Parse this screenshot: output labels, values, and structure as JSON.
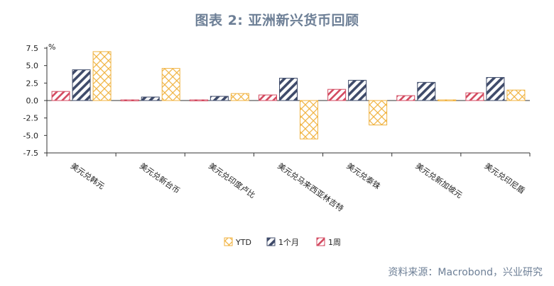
{
  "title": "图表 2: 亚洲新兴货币回顾",
  "source": "资料来源：Macrobond，兴业研究",
  "chart_data": {
    "type": "bar",
    "unit": "%",
    "categories": [
      "美元兑韩元",
      "美元兑新台币",
      "美元兑印度卢比",
      "美元兑马来西亚林吉特",
      "美元兑泰铢",
      "美元兑新加坡元",
      "美元兑印尼盾"
    ],
    "series": [
      {
        "name": "1周",
        "color": "#d34a60",
        "pattern": "diag-thin",
        "values": [
          1.3,
          0.1,
          0.1,
          0.8,
          1.6,
          0.7,
          1.1
        ]
      },
      {
        "name": "1个月",
        "color": "#3f4b6a",
        "pattern": "diag-thick",
        "values": [
          4.4,
          0.5,
          0.6,
          3.2,
          2.9,
          2.6,
          3.3
        ]
      },
      {
        "name": "YTD",
        "color": "#f0b23e",
        "pattern": "cross",
        "values": [
          7.0,
          4.6,
          1.0,
          -5.5,
          -3.5,
          0.1,
          1.5
        ]
      }
    ],
    "legend_order": [
      "YTD",
      "1个月",
      "1周"
    ],
    "ylim": [
      -7.5,
      7.5
    ],
    "yticks": [
      "7.5",
      "5.0",
      "2.5",
      "0.0",
      "-2.5",
      "-5.0",
      "-7.5"
    ],
    "grid": false,
    "legend_position": "bottom"
  }
}
